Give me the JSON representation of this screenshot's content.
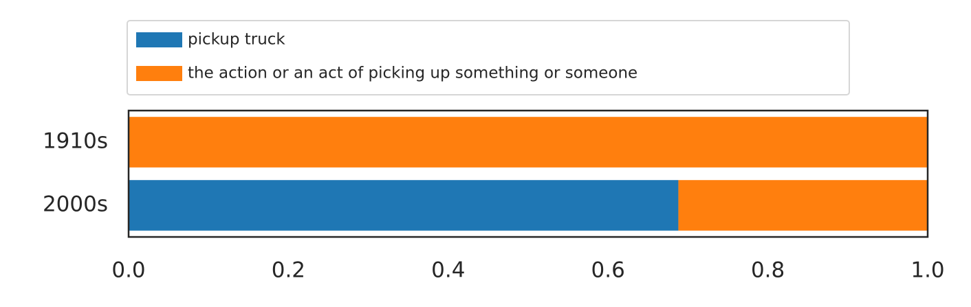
{
  "chart_data": {
    "type": "stacked-barh",
    "categories": [
      "1910s",
      "2000s"
    ],
    "series": [
      {
        "name": "pickup truck",
        "color": "#1f77b4",
        "values": [
          0,
          0.688
        ]
      },
      {
        "name": "the action or an act of picking up something or someone",
        "color": "#ff7f0e",
        "values": [
          1.0,
          0.312
        ]
      }
    ],
    "xlim": [
      0,
      1
    ],
    "xticks": [
      {
        "value": 0,
        "label": "0.0"
      },
      0.2,
      0.4,
      0.6,
      0.8,
      {
        "value": 1,
        "label": "1.0"
      }
    ],
    "legend": "top"
  }
}
